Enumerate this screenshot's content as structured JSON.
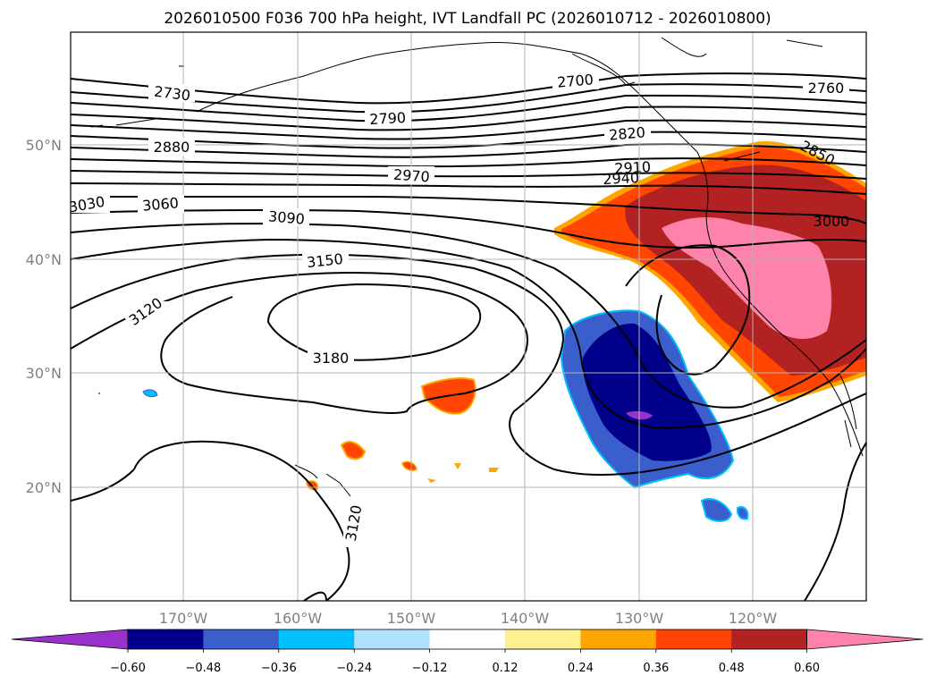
{
  "title": "2026010500 F036 700 hPa height, IVT Landfall PC (2026010712 - 2026010800)",
  "map": {
    "lat_ticks": [
      "50°N",
      "40°N",
      "30°N",
      "20°N"
    ],
    "lon_ticks": [
      "170°W",
      "160°W",
      "150°W",
      "140°W",
      "130°W",
      "120°W"
    ],
    "grid": true,
    "contour_labels": [
      {
        "text": "2730"
      },
      {
        "text": "2700"
      },
      {
        "text": "2760"
      },
      {
        "text": "2790"
      },
      {
        "text": "2820"
      },
      {
        "text": "2850"
      },
      {
        "text": "2880"
      },
      {
        "text": "2910"
      },
      {
        "text": "2940"
      },
      {
        "text": "2970"
      },
      {
        "text": "3000"
      },
      {
        "text": "3030"
      },
      {
        "text": "3060"
      },
      {
        "text": "3090"
      },
      {
        "text": "3150"
      },
      {
        "text": "3120"
      },
      {
        "text": "3180"
      },
      {
        "text": "3120"
      }
    ]
  },
  "colorbar": {
    "colors": [
      "#9932cc",
      "#00008b",
      "#3a5fcd",
      "#00bfff",
      "#b0e2ff",
      "#ffffff",
      "#fff08f",
      "#ffa500",
      "#ff4500",
      "#b22222",
      "#ff82ab"
    ],
    "tick_labels": [
      "−0.60",
      "−0.48",
      "−0.36",
      "−0.24",
      "−0.12",
      "0.12",
      "0.24",
      "0.36",
      "0.48",
      "0.60"
    ]
  }
}
